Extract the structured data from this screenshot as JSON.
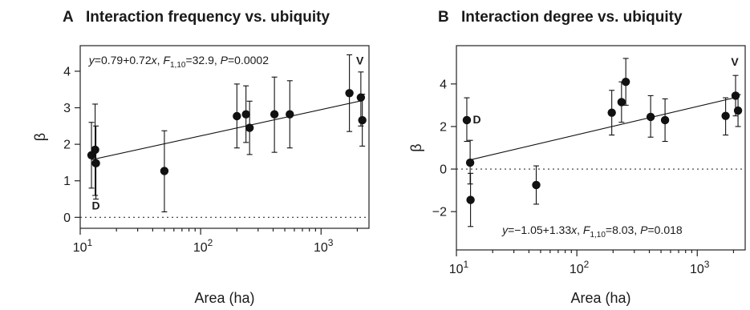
{
  "chart_data": [
    {
      "type": "scatter",
      "panel_letter": "A",
      "title": "Interaction frequency vs. ubiquity",
      "xlabel": "Area (ha)",
      "ylabel": "β",
      "x_scale": "log",
      "xlim": [
        10,
        2500
      ],
      "ylim": [
        -0.3,
        4.7
      ],
      "x_ticks": [
        10,
        100,
        1000
      ],
      "x_tick_labels": [
        [
          "10",
          "1"
        ],
        [
          "10",
          "2"
        ],
        [
          "10",
          "3"
        ]
      ],
      "y_ticks": [
        0,
        1,
        2,
        3,
        4
      ],
      "y_tick_labels": [
        "0",
        "1",
        "2",
        "3",
        "4"
      ],
      "reference_line_y": 0,
      "points": [
        {
          "x": 12.4,
          "y": 1.7,
          "lo": 0.8,
          "hi": 2.6
        },
        {
          "x": 13.3,
          "y": 1.85,
          "lo": 0.6,
          "hi": 3.1
        },
        {
          "x": 13.5,
          "y": 1.48,
          "lo": 0.5,
          "hi": 2.5
        },
        {
          "x": 50,
          "y": 1.27,
          "lo": 0.15,
          "hi": 2.37
        },
        {
          "x": 200,
          "y": 2.77,
          "lo": 1.9,
          "hi": 3.65
        },
        {
          "x": 238,
          "y": 2.82,
          "lo": 2.05,
          "hi": 3.6
        },
        {
          "x": 255,
          "y": 2.45,
          "lo": 1.72,
          "hi": 3.18
        },
        {
          "x": 410,
          "y": 2.82,
          "lo": 1.78,
          "hi": 3.84
        },
        {
          "x": 550,
          "y": 2.82,
          "lo": 1.9,
          "hi": 3.74
        },
        {
          "x": 1720,
          "y": 3.4,
          "lo": 2.35,
          "hi": 4.45
        },
        {
          "x": 2140,
          "y": 3.28,
          "lo": 2.5,
          "hi": 3.98
        },
        {
          "x": 2200,
          "y": 2.66,
          "lo": 1.95,
          "hi": 3.37
        }
      ],
      "fit": {
        "intercept": 0.79,
        "slope": 0.72,
        "x_from": 12.4,
        "x_to": 2200
      },
      "annotations": [
        {
          "text": "D",
          "x": 13.5,
          "y": 0.22,
          "kind": "mark"
        },
        {
          "text": "V",
          "x": 2100,
          "y": 4.18,
          "kind": "mark"
        }
      ],
      "equation": {
        "pre": "y",
        "body": "=0.79+0.72",
        "xvar": "x",
        "comma": ", ",
        "F": "F",
        "F_sub": "1,10",
        "F_val": "=32.9, ",
        "P": "P",
        "P_val": "=0.0002",
        "x_pos": 11.8,
        "y_pos": 4.2
      }
    },
    {
      "type": "scatter",
      "panel_letter": "B",
      "title": "Interaction degree vs. ubiquity",
      "xlabel": "Area (ha)",
      "ylabel": "β",
      "x_scale": "log",
      "xlim": [
        10,
        2500
      ],
      "ylim": [
        -3.8,
        5.8
      ],
      "x_ticks": [
        10,
        100,
        1000
      ],
      "x_tick_labels": [
        [
          "10",
          "1"
        ],
        [
          "10",
          "2"
        ],
        [
          "10",
          "3"
        ]
      ],
      "y_ticks": [
        -2,
        0,
        2,
        4
      ],
      "y_tick_labels": [
        "−2",
        "0",
        "2",
        "4"
      ],
      "reference_line_y": 0,
      "points": [
        {
          "x": 12.2,
          "y": 2.3,
          "lo": 1.3,
          "hi": 3.35
        },
        {
          "x": 13.0,
          "y": 0.3,
          "lo": -0.7,
          "hi": 1.35
        },
        {
          "x": 13.1,
          "y": -1.45,
          "lo": -2.7,
          "hi": -0.2
        },
        {
          "x": 46,
          "y": -0.75,
          "lo": -1.65,
          "hi": 0.15
        },
        {
          "x": 195,
          "y": 2.65,
          "lo": 1.6,
          "hi": 3.7
        },
        {
          "x": 235,
          "y": 3.15,
          "lo": 2.2,
          "hi": 4.1
        },
        {
          "x": 255,
          "y": 4.1,
          "lo": 3.0,
          "hi": 5.2
        },
        {
          "x": 410,
          "y": 2.45,
          "lo": 1.5,
          "hi": 3.45
        },
        {
          "x": 540,
          "y": 2.3,
          "lo": 1.3,
          "hi": 3.3
        },
        {
          "x": 1720,
          "y": 2.5,
          "lo": 1.6,
          "hi": 3.35
        },
        {
          "x": 2080,
          "y": 3.45,
          "lo": 2.5,
          "hi": 4.4
        },
        {
          "x": 2180,
          "y": 2.75,
          "lo": 2.0,
          "hi": 3.5
        }
      ],
      "fit": {
        "intercept": -1.05,
        "slope": 1.33,
        "x_from": 12.2,
        "x_to": 2180
      },
      "annotations": [
        {
          "text": "D",
          "x": 14.8,
          "y": 2.15,
          "kind": "mark"
        },
        {
          "text": "V",
          "x": 2050,
          "y": 4.85,
          "kind": "mark"
        }
      ],
      "equation": {
        "pre": "y",
        "body": "=−1.05+1.33",
        "xvar": "x",
        "comma": ", ",
        "F": "F",
        "F_sub": "1,10",
        "F_val": "=8.03, ",
        "P": "P",
        "P_val": "=0.018",
        "x_pos": 24,
        "y_pos": -3.05
      }
    }
  ]
}
